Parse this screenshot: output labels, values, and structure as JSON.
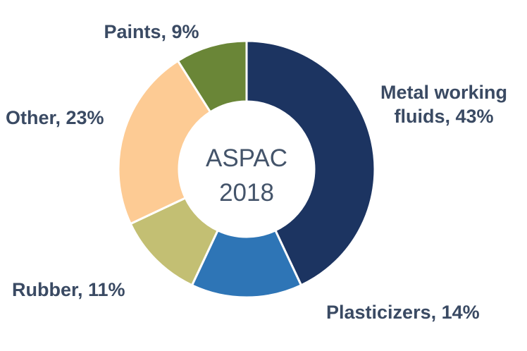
{
  "chart_data": {
    "type": "pie",
    "donut": true,
    "center_label": [
      "ASPAC",
      "2018"
    ],
    "slices": [
      {
        "label": "Metal working fluids",
        "label_lines": [
          "Metal working",
          "fluids, 43%"
        ],
        "value": 43,
        "color": "#1c3461"
      },
      {
        "label": "Plasticizers",
        "label_lines": [
          "Plasticizers, 14%"
        ],
        "value": 14,
        "color": "#2e75b6"
      },
      {
        "label": "Rubber",
        "label_lines": [
          "Rubber, 11%"
        ],
        "value": 11,
        "color": "#c3bf73"
      },
      {
        "label": "Other",
        "label_lines": [
          "Other, 23%"
        ],
        "value": 23,
        "color": "#fdcb94"
      },
      {
        "label": "Paints",
        "label_lines": [
          "Paints, 9%"
        ],
        "value": 9,
        "color": "#6a8637"
      }
    ],
    "unit": "%",
    "legend": "none",
    "label_color": "#3a4a63",
    "center_label_color": "#44546a"
  }
}
